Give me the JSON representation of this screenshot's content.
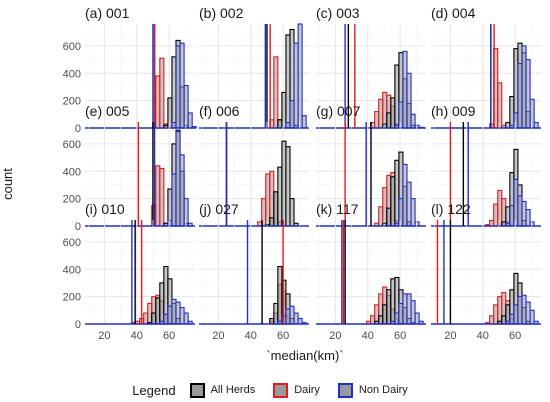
{
  "colors": {
    "all_herds": "#000000",
    "dairy": "#e41a1c",
    "non_dairy": "#1f2fcc",
    "fill": "#9a9a9a",
    "grid_major": "#e6e6e6",
    "grid_minor": "#f3f3f3"
  },
  "axis": {
    "xlabel": "`median(km)`",
    "ylabel": "count",
    "x_ticks": [
      "20",
      "40",
      "60"
    ],
    "y_ticks": [
      "0",
      "200",
      "400",
      "600"
    ]
  },
  "legend": {
    "title": "Legend",
    "items": [
      "All Herds",
      "Dairy",
      "Non Dairy"
    ],
    "placement": "bottom"
  },
  "chart_data": {
    "type": "bar",
    "facet": "4 columns x 3 rows, shared axes",
    "bin_width_km": 2.5,
    "xlim": [
      8,
      76
    ],
    "ylim": [
      0,
      760
    ],
    "grid": true,
    "panels": [
      {
        "title": "(a) 001",
        "vlines": {
          "all": 51,
          "dairy": 51,
          "non_dairy": 50
        },
        "all": {
          "x": [
            58,
            60.5,
            63,
            65.5,
            68,
            70.5
          ],
          "y": [
            20,
            220,
            520,
            640,
            300,
            20
          ]
        },
        "dairy": {
          "x": [
            53,
            55.5,
            58
          ],
          "y": [
            380,
            510,
            30
          ]
        },
        "non": {
          "x": [
            63,
            65.5,
            68,
            70.5,
            73,
            75.5
          ],
          "y": [
            40,
            600,
            620,
            310,
            110,
            10
          ]
        }
      },
      {
        "title": "(b) 002",
        "vlines": {
          "all": 50,
          "dairy": 52,
          "non_dairy": 49
        },
        "all": {
          "x": [
            58,
            60.5,
            63,
            65.5,
            68
          ],
          "y": [
            60,
            260,
            680,
            720,
            20
          ]
        },
        "dairy": {
          "x": [
            53,
            55.5,
            58
          ],
          "y": [
            60,
            520,
            60
          ]
        },
        "non": {
          "x": [
            63,
            65.5,
            68,
            70.5,
            73
          ],
          "y": [
            40,
            200,
            620,
            760,
            90
          ]
        }
      },
      {
        "title": "(c) 003",
        "vlines": {
          "all": 28,
          "dairy": 32,
          "non_dairy": 26
        },
        "all": {
          "x": [
            50.5,
            53,
            55.5,
            58,
            60.5,
            63,
            65.5,
            68
          ],
          "y": [
            30,
            110,
            220,
            460,
            550,
            360,
            180,
            20
          ]
        },
        "dairy": {
          "x": [
            43,
            45.5,
            48,
            50.5,
            53,
            55.5,
            58
          ],
          "y": [
            40,
            120,
            210,
            260,
            240,
            160,
            30
          ]
        },
        "non": {
          "x": [
            58,
            60.5,
            63,
            65.5,
            68,
            70.5,
            73
          ],
          "y": [
            20,
            190,
            560,
            400,
            100,
            20,
            5
          ]
        }
      },
      {
        "title": "(d) 004",
        "vlines": {
          "all": 45,
          "dairy": 47,
          "non_dairy": 45
        },
        "all": {
          "x": [
            55.5,
            58,
            60.5,
            63,
            65.5,
            68
          ],
          "y": [
            40,
            230,
            580,
            620,
            550,
            120
          ]
        },
        "dairy": {
          "x": [
            45.5,
            48,
            50.5,
            53
          ],
          "y": [
            30,
            580,
            330,
            20
          ]
        },
        "non": {
          "x": [
            58,
            60.5,
            63,
            65.5,
            68,
            70.5,
            73
          ],
          "y": [
            20,
            110,
            470,
            600,
            500,
            210,
            40
          ]
        }
      },
      {
        "title": "(e) 005",
        "vlines": {
          "all": 50,
          "dairy": 41,
          "non_dairy": 51
        },
        "all": {
          "x": [
            58,
            60.5,
            63,
            65.5,
            68,
            70.5
          ],
          "y": [
            20,
            270,
            600,
            700,
            400,
            20
          ]
        },
        "dairy": {
          "x": [
            50.5,
            53,
            55.5,
            58
          ],
          "y": [
            150,
            440,
            420,
            20
          ]
        },
        "non": {
          "x": [
            60.5,
            63,
            65.5,
            68,
            70.5,
            73
          ],
          "y": [
            40,
            380,
            690,
            520,
            200,
            20
          ]
        }
      },
      {
        "title": "(f) 006",
        "vlines": {
          "all": 25,
          "dairy": 25,
          "non_dairy": 25
        },
        "all": {
          "x": [
            50.5,
            53,
            55.5,
            58,
            60.5,
            63,
            65.5,
            68
          ],
          "y": [
            10,
            60,
            250,
            430,
            620,
            580,
            200,
            20
          ]
        },
        "dairy": {
          "x": [
            45.5,
            48,
            50.5,
            53,
            55.5,
            58
          ],
          "y": [
            30,
            200,
            380,
            400,
            250,
            30
          ]
        },
        "non": {
          "x": [],
          "y": []
        }
      },
      {
        "title": "(g) 007",
        "vlines": {
          "all": 42,
          "dairy": 26,
          "non_dairy": 39
        },
        "all": {
          "x": [
            50.5,
            53,
            55.5,
            58,
            60.5,
            63,
            65.5
          ],
          "y": [
            20,
            130,
            360,
            480,
            540,
            290,
            30
          ]
        },
        "dairy": {
          "x": [
            45.5,
            48,
            50.5,
            53,
            55.5,
            58
          ],
          "y": [
            20,
            140,
            280,
            370,
            390,
            40
          ]
        },
        "non": {
          "x": [
            58,
            60.5,
            63,
            65.5,
            68,
            70.5
          ],
          "y": [
            20,
            200,
            450,
            320,
            200,
            30
          ]
        }
      },
      {
        "title": "(h) 009",
        "vlines": {
          "all": 28,
          "dairy": 20,
          "non_dairy": 31
        },
        "all": {
          "x": [
            53,
            55.5,
            58,
            60.5,
            63,
            65.5
          ],
          "y": [
            30,
            140,
            390,
            560,
            300,
            40
          ]
        },
        "dairy": {
          "x": [
            43,
            45.5,
            48,
            50.5,
            53,
            55.5
          ],
          "y": [
            10,
            40,
            160,
            260,
            200,
            30
          ]
        },
        "non": {
          "x": [
            55.5,
            58,
            60.5,
            63,
            65.5,
            68,
            70.5
          ],
          "y": [
            20,
            150,
            340,
            220,
            180,
            120,
            30
          ]
        }
      },
      {
        "title": "(i) 010",
        "vlines": {
          "all": 39,
          "dairy": 43,
          "non_dairy": 37
        },
        "all": {
          "x": [
            48,
            50.5,
            53,
            55.5,
            58,
            60.5,
            63,
            65.5
          ],
          "y": [
            10,
            80,
            190,
            300,
            420,
            330,
            150,
            40
          ]
        },
        "dairy": {
          "x": [
            38,
            40.5,
            43,
            45.5,
            48,
            50.5,
            53,
            55.5,
            58,
            60.5
          ],
          "y": [
            10,
            20,
            40,
            80,
            150,
            200,
            210,
            170,
            70,
            10
          ]
        },
        "non": {
          "x": [
            55.5,
            58,
            60.5,
            63,
            65.5,
            68,
            70.5,
            73
          ],
          "y": [
            20,
            70,
            130,
            180,
            160,
            120,
            80,
            20
          ]
        }
      },
      {
        "title": "(j) 027",
        "vlines": {
          "all": 47,
          "dairy": 60,
          "non_dairy": 38
        },
        "all": {
          "x": [
            53,
            55.5,
            58,
            60.5,
            63,
            65.5
          ],
          "y": [
            40,
            150,
            420,
            320,
            220,
            40
          ]
        },
        "dairy": {
          "x": [
            53,
            55.5,
            58,
            60.5,
            63
          ],
          "y": [
            20,
            80,
            290,
            240,
            60
          ]
        },
        "non": {
          "x": [
            58,
            60.5,
            63,
            65.5,
            68,
            70.5,
            73
          ],
          "y": [
            20,
            60,
            110,
            130,
            80,
            40,
            10
          ]
        }
      },
      {
        "title": "(k) 117",
        "vlines": {
          "all": 26,
          "dairy": 25,
          "non_dairy": 24
        },
        "all": {
          "x": [
            45.5,
            48,
            50.5,
            53,
            55.5,
            58,
            60.5,
            63,
            65.5,
            68
          ],
          "y": [
            20,
            60,
            140,
            250,
            330,
            340,
            250,
            120,
            40,
            10
          ]
        },
        "dairy": {
          "x": [
            40.5,
            43,
            45.5,
            48,
            50.5,
            53,
            55.5,
            58,
            60.5
          ],
          "y": [
            20,
            60,
            140,
            220,
            270,
            210,
            110,
            40,
            10
          ]
        },
        "non": {
          "x": [
            55.5,
            58,
            60.5,
            63,
            65.5,
            68,
            70.5,
            73
          ],
          "y": [
            20,
            80,
            150,
            220,
            220,
            170,
            80,
            20
          ]
        }
      },
      {
        "title": "(l) 122",
        "vlines": {
          "all": 20,
          "dairy": 12,
          "non_dairy": 16
        },
        "all": {
          "x": [
            50.5,
            53,
            55.5,
            58,
            60.5,
            63,
            65.5,
            68
          ],
          "y": [
            20,
            60,
            140,
            250,
            370,
            300,
            120,
            20
          ]
        },
        "dairy": {
          "x": [
            43,
            45.5,
            48,
            50.5,
            53,
            55.5,
            58
          ],
          "y": [
            10,
            60,
            140,
            200,
            230,
            170,
            40
          ]
        },
        "non": {
          "x": [
            55.5,
            58,
            60.5,
            63,
            65.5,
            68,
            70.5,
            73
          ],
          "y": [
            20,
            70,
            140,
            200,
            210,
            160,
            100,
            20
          ]
        }
      }
    ]
  }
}
